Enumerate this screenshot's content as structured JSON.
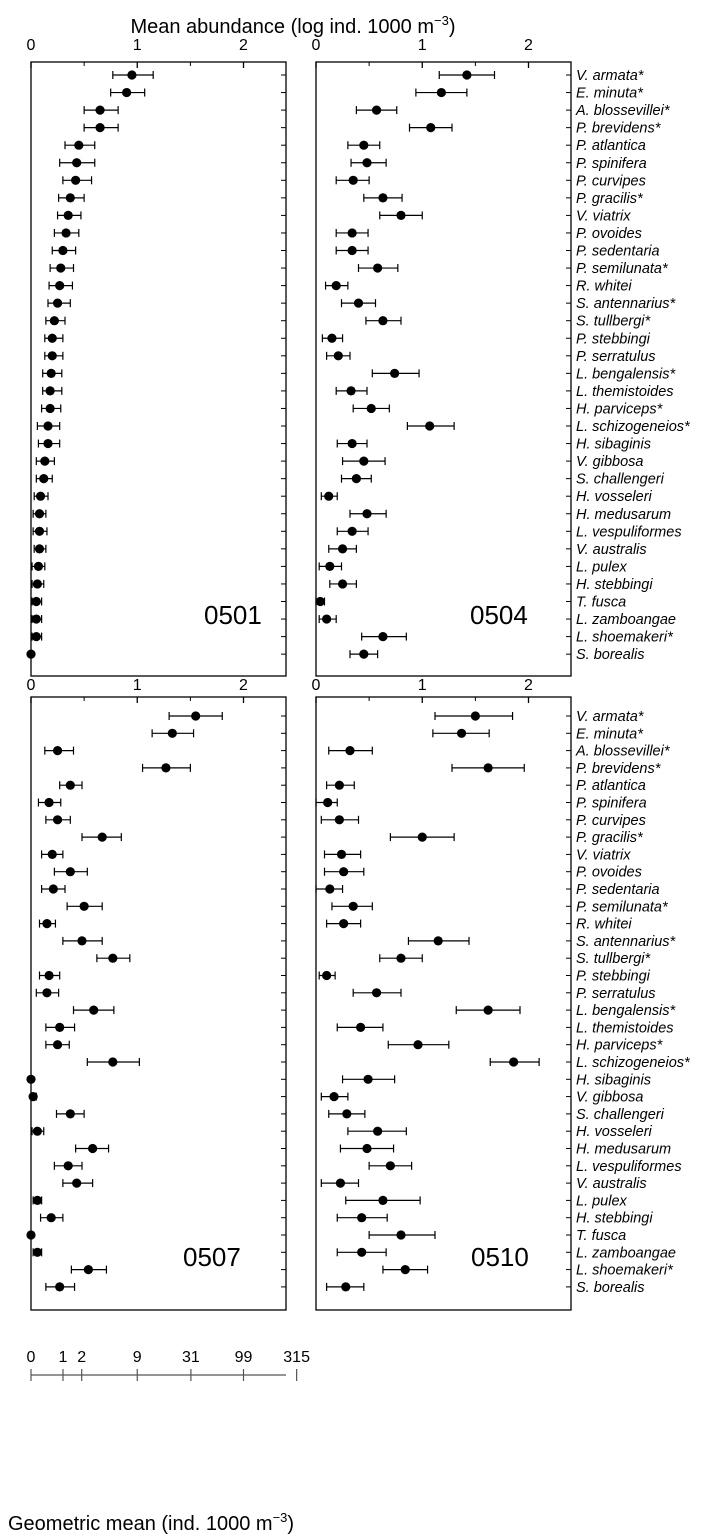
{
  "top_axis_title": "Mean abundance (log ind. 1000 m",
  "top_axis_title_sup": "−3",
  "top_axis_title_end": ")",
  "bottom_axis_title": "Geometric mean (ind. 1000 m",
  "bottom_axis_title_sup": "−3",
  "bottom_axis_title_end": ")",
  "species": [
    "V. armata*",
    "E. minuta*",
    "A. blossevillei*",
    "P. brevidens*",
    "P. atlantica",
    "P. spinifera",
    "P. curvipes",
    "P. gracilis*",
    "V. viatrix",
    "P. ovoides",
    "P. sedentaria",
    "P. semilunata*",
    "R. whitei",
    "S. antennarius*",
    "S. tullbergi*",
    "P. stebbingi",
    "P. serratulus",
    "L. bengalensis*",
    "L. themistoides",
    "H. parviceps*",
    "L. schizogeneios*",
    "H. sibaginis",
    "V. gibbosa",
    "S. challengeri",
    "H. vosseleri",
    "H. medusarum",
    "L. vespuliformes",
    "V. australis",
    "L. pulex",
    "H. stebbingi",
    "T. fusca",
    "L. zamboangae",
    "L. shoemakeri*",
    "S. borealis"
  ],
  "secondary_axis_ticks": [
    "0",
    "1",
    "2",
    "9",
    "31",
    "99",
    "315"
  ],
  "chart_data": [
    {
      "type": "scatter",
      "title": "0501",
      "xlabel": "Mean abundance (log ind. 1000 m−3)",
      "xlim": [
        0,
        2.4
      ],
      "xticks": [
        0,
        1,
        2
      ],
      "series": [
        {
          "name": "mean",
          "values": [
            0.95,
            0.9,
            0.65,
            0.65,
            0.45,
            0.43,
            0.42,
            0.37,
            0.35,
            0.33,
            0.3,
            0.28,
            0.27,
            0.25,
            0.22,
            0.2,
            0.2,
            0.19,
            0.18,
            0.18,
            0.16,
            0.16,
            0.13,
            0.12,
            0.09,
            0.08,
            0.08,
            0.08,
            0.07,
            0.06,
            0.05,
            0.05,
            0.05,
            0.0
          ]
        },
        {
          "name": "lower",
          "values": [
            0.77,
            0.75,
            0.5,
            0.5,
            0.32,
            0.27,
            0.3,
            0.26,
            0.25,
            0.22,
            0.2,
            0.18,
            0.17,
            0.16,
            0.14,
            0.13,
            0.13,
            0.11,
            0.11,
            0.1,
            0.06,
            0.07,
            0.05,
            0.05,
            0.03,
            0.02,
            0.02,
            0.03,
            0.01,
            0.01,
            0.01,
            0.01,
            0.01,
            0.0
          ]
        },
        {
          "name": "upper",
          "values": [
            1.15,
            1.07,
            0.82,
            0.82,
            0.6,
            0.6,
            0.57,
            0.5,
            0.47,
            0.45,
            0.42,
            0.4,
            0.39,
            0.37,
            0.32,
            0.3,
            0.3,
            0.29,
            0.29,
            0.28,
            0.27,
            0.27,
            0.22,
            0.2,
            0.16,
            0.14,
            0.15,
            0.14,
            0.13,
            0.12,
            0.1,
            0.1,
            0.1,
            0.0
          ]
        }
      ]
    },
    {
      "type": "scatter",
      "title": "0504",
      "xlabel": "Mean abundance (log ind. 1000 m−3)",
      "xlim": [
        0,
        2.4
      ],
      "xticks": [
        0,
        1,
        2
      ],
      "series": [
        {
          "name": "mean",
          "values": [
            1.42,
            1.18,
            0.57,
            1.08,
            0.45,
            0.48,
            0.35,
            0.63,
            0.8,
            0.34,
            0.34,
            0.58,
            0.19,
            0.4,
            0.63,
            0.15,
            0.21,
            0.74,
            0.33,
            0.52,
            1.07,
            0.34,
            0.45,
            0.38,
            0.12,
            0.48,
            0.34,
            0.25,
            0.13,
            0.25,
            0.04,
            0.1,
            0.63,
            0.45
          ]
        },
        {
          "name": "lower",
          "values": [
            1.16,
            0.94,
            0.38,
            0.88,
            0.3,
            0.33,
            0.19,
            0.45,
            0.6,
            0.19,
            0.19,
            0.4,
            0.09,
            0.24,
            0.47,
            0.06,
            0.1,
            0.53,
            0.19,
            0.35,
            0.86,
            0.2,
            0.25,
            0.24,
            0.05,
            0.32,
            0.2,
            0.12,
            0.03,
            0.13,
            0.0,
            0.03,
            0.43,
            0.32
          ]
        },
        {
          "name": "upper",
          "values": [
            1.68,
            1.42,
            0.76,
            1.28,
            0.6,
            0.66,
            0.5,
            0.81,
            1.0,
            0.49,
            0.49,
            0.77,
            0.3,
            0.56,
            0.8,
            0.25,
            0.32,
            0.97,
            0.48,
            0.69,
            1.3,
            0.48,
            0.65,
            0.52,
            0.2,
            0.66,
            0.49,
            0.38,
            0.24,
            0.38,
            0.08,
            0.19,
            0.85,
            0.58
          ]
        }
      ]
    },
    {
      "type": "scatter",
      "title": "0507",
      "xlabel": "Mean abundance (log ind. 1000 m−3)",
      "xlim": [
        0,
        2.4
      ],
      "xticks": [
        0,
        1,
        2
      ],
      "series": [
        {
          "name": "mean",
          "values": [
            1.55,
            1.33,
            0.25,
            1.27,
            0.37,
            0.17,
            0.25,
            0.67,
            0.2,
            0.37,
            0.21,
            0.5,
            0.15,
            0.48,
            0.77,
            0.17,
            0.15,
            0.59,
            0.27,
            0.25,
            0.77,
            0.0,
            0.02,
            0.37,
            0.06,
            0.58,
            0.35,
            0.43,
            0.06,
            0.19,
            0.0,
            0.06,
            0.54,
            0.27
          ]
        },
        {
          "name": "lower",
          "values": [
            1.3,
            1.14,
            0.13,
            1.05,
            0.27,
            0.07,
            0.14,
            0.48,
            0.1,
            0.22,
            0.1,
            0.34,
            0.08,
            0.3,
            0.62,
            0.08,
            0.05,
            0.4,
            0.14,
            0.14,
            0.53,
            0.0,
            0.0,
            0.24,
            0.01,
            0.42,
            0.22,
            0.3,
            0.02,
            0.09,
            0.0,
            0.02,
            0.38,
            0.14
          ]
        },
        {
          "name": "upper",
          "values": [
            1.8,
            1.53,
            0.4,
            1.5,
            0.48,
            0.28,
            0.37,
            0.85,
            0.3,
            0.53,
            0.32,
            0.67,
            0.23,
            0.67,
            0.93,
            0.27,
            0.26,
            0.78,
            0.41,
            0.36,
            1.02,
            0.0,
            0.05,
            0.5,
            0.12,
            0.73,
            0.48,
            0.58,
            0.1,
            0.3,
            0.0,
            0.1,
            0.71,
            0.41
          ]
        }
      ]
    },
    {
      "type": "scatter",
      "title": "0510",
      "xlabel": "Mean abundance (log ind. 1000 m−3)",
      "xlim": [
        0,
        2.4
      ],
      "xticks": [
        0,
        1,
        2
      ],
      "series": [
        {
          "name": "mean",
          "values": [
            1.5,
            1.37,
            0.32,
            1.62,
            0.22,
            0.11,
            0.22,
            1.0,
            0.24,
            0.26,
            0.13,
            0.35,
            0.26,
            1.15,
            0.8,
            0.1,
            0.57,
            1.62,
            0.42,
            0.96,
            1.86,
            0.49,
            0.17,
            0.29,
            0.58,
            0.48,
            0.7,
            0.23,
            0.63,
            0.43,
            0.8,
            0.43,
            0.84,
            0.28
          ]
        },
        {
          "name": "lower",
          "values": [
            1.12,
            1.1,
            0.12,
            1.28,
            0.1,
            0.0,
            0.05,
            0.7,
            0.08,
            0.08,
            0.0,
            0.15,
            0.1,
            0.87,
            0.6,
            0.03,
            0.35,
            1.32,
            0.2,
            0.68,
            1.64,
            0.25,
            0.05,
            0.12,
            0.3,
            0.23,
            0.5,
            0.05,
            0.28,
            0.2,
            0.5,
            0.2,
            0.63,
            0.1
          ]
        },
        {
          "name": "upper",
          "values": [
            1.85,
            1.63,
            0.53,
            1.96,
            0.36,
            0.2,
            0.4,
            1.3,
            0.42,
            0.45,
            0.25,
            0.53,
            0.42,
            1.44,
            1.0,
            0.18,
            0.8,
            1.92,
            0.63,
            1.25,
            2.1,
            0.74,
            0.3,
            0.46,
            0.85,
            0.73,
            0.9,
            0.4,
            0.98,
            0.67,
            1.12,
            0.66,
            1.05,
            0.45
          ]
        }
      ]
    }
  ]
}
